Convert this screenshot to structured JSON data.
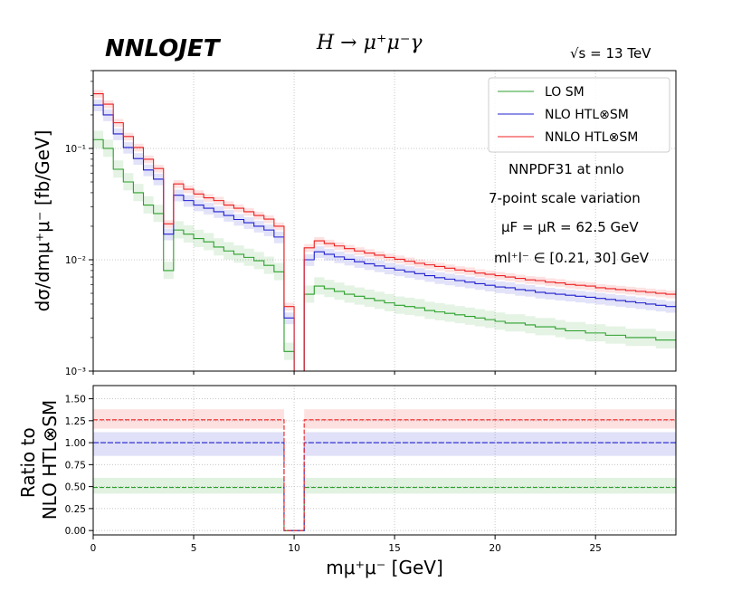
{
  "header": {
    "brand": "NNLOJET",
    "process": "H → μ⁺μ⁻γ",
    "energy": "√s = 13 TeV"
  },
  "annotations": [
    "NNPDF31 at nnlo",
    "7-point scale variation",
    "μF = μR = 62.5 GeV",
    "ml⁺l⁻ ∈ [0.21, 30] GeV"
  ],
  "colors": {
    "lo": "#2ca02c",
    "nlo": "#2020d0",
    "nnlo": "#ee2020",
    "grid": "#c8c8c8"
  },
  "chart_data": [
    {
      "type": "line",
      "scale": "log",
      "ylabel": "dσ/dmμ⁺μ⁻ [fb/GeV]",
      "xlim": [
        0,
        29
      ],
      "ylim": [
        0.001,
        0.5
      ],
      "yticks": [
        {
          "value": 0.1,
          "label": "10⁻¹"
        },
        {
          "value": 0.01,
          "label": "10⁻²"
        },
        {
          "value": 0.001,
          "label": "10⁻³"
        }
      ],
      "grid": true,
      "legend": "top-right",
      "x_edges": [
        0,
        0.5,
        1,
        1.5,
        2,
        2.5,
        3,
        3.5,
        4,
        4.5,
        5,
        5.5,
        6,
        6.5,
        7,
        7.5,
        8,
        8.5,
        9,
        9.5,
        10,
        10.5,
        11,
        11.5,
        12,
        12.5,
        13,
        13.5,
        14,
        14.5,
        15,
        15.5,
        16,
        16.5,
        17,
        17.5,
        18,
        18.5,
        19,
        19.5,
        20,
        20.5,
        21,
        21.5,
        22,
        22.5,
        23,
        23.5,
        24,
        24.5,
        25,
        25.5,
        26,
        26.5,
        27,
        27.5,
        28,
        28.5,
        29
      ],
      "series": [
        {
          "name": "LO SM",
          "color": "#2ca02c",
          "band": [
            0.84,
            1.2
          ],
          "values": [
            0.12,
            0.1,
            0.065,
            0.05,
            0.04,
            0.031,
            0.026,
            0.008,
            0.0185,
            0.017,
            0.0155,
            0.0145,
            0.013,
            0.012,
            0.0112,
            0.0105,
            0.0098,
            0.0089,
            0.0078,
            0.0015,
            null,
            0.0049,
            0.0058,
            0.0055,
            0.0052,
            0.0049,
            0.0047,
            0.0045,
            0.0043,
            0.0041,
            0.0039,
            0.0038,
            0.0037,
            0.0035,
            0.0034,
            0.0033,
            0.0032,
            0.0031,
            0.003,
            0.0029,
            0.0028,
            0.0027,
            0.0027,
            0.0026,
            0.0025,
            0.0025,
            0.0024,
            0.0023,
            0.0023,
            0.0022,
            0.0022,
            0.0021,
            0.0021,
            0.002,
            0.002,
            0.002,
            0.0019,
            0.0019
          ]
        },
        {
          "name": "NLO HTL⊗SM",
          "color": "#2020d0",
          "band": [
            0.88,
            1.12
          ],
          "values": [
            0.245,
            0.2,
            0.135,
            0.102,
            0.081,
            0.064,
            0.053,
            0.017,
            0.038,
            0.034,
            0.031,
            0.029,
            0.027,
            0.025,
            0.023,
            0.0215,
            0.02,
            0.0185,
            0.016,
            0.003,
            null,
            0.01,
            0.0118,
            0.0112,
            0.0106,
            0.0101,
            0.0096,
            0.0092,
            0.0088,
            0.0084,
            0.0081,
            0.0078,
            0.0075,
            0.0072,
            0.0069,
            0.0067,
            0.0065,
            0.0063,
            0.0061,
            0.0059,
            0.0057,
            0.0056,
            0.0054,
            0.0053,
            0.0051,
            0.005,
            0.0049,
            0.0048,
            0.0047,
            0.0046,
            0.0045,
            0.0044,
            0.0043,
            0.0042,
            0.0041,
            0.004,
            0.0039,
            0.0038
          ]
        },
        {
          "name": "NNLO HTL⊗SM",
          "color": "#ee2020",
          "band": [
            0.92,
            1.08
          ],
          "values": [
            0.31,
            0.25,
            0.17,
            0.128,
            0.102,
            0.08,
            0.066,
            0.021,
            0.048,
            0.043,
            0.039,
            0.036,
            0.034,
            0.031,
            0.029,
            0.027,
            0.025,
            0.0232,
            0.02,
            0.0038,
            null,
            0.0128,
            0.0148,
            0.014,
            0.0133,
            0.0126,
            0.012,
            0.0115,
            0.011,
            0.0105,
            0.0101,
            0.0097,
            0.0093,
            0.009,
            0.0087,
            0.0084,
            0.0081,
            0.0079,
            0.0076,
            0.0074,
            0.0072,
            0.007,
            0.0068,
            0.0066,
            0.0065,
            0.0063,
            0.0062,
            0.006,
            0.0059,
            0.0058,
            0.0056,
            0.0055,
            0.0054,
            0.0053,
            0.0052,
            0.0051,
            0.005,
            0.0049
          ]
        }
      ]
    },
    {
      "type": "line",
      "ylabel": "Ratio to NLO HTL⊗SM",
      "xlabel": "mμ⁺μ⁻ [GeV]",
      "xlim": [
        0,
        29
      ],
      "ylim": [
        -0.05,
        1.65
      ],
      "xticks": [
        0,
        5,
        10,
        15,
        20,
        25
      ],
      "xticklabels": [
        "0",
        "5",
        "10",
        "15",
        "20",
        "25"
      ],
      "yticks": [
        0,
        0.25,
        0.5,
        0.75,
        1.0,
        1.25,
        1.5
      ],
      "yticklabels": [
        "0.00",
        "0.25",
        "0.50",
        "0.75",
        "1.00",
        "1.25",
        "1.50"
      ],
      "grid": true,
      "gap": [
        9.5,
        10.5
      ],
      "series": [
        {
          "name": "LO SM",
          "color": "#2ca02c",
          "value": 0.49,
          "band": [
            0.42,
            0.6
          ]
        },
        {
          "name": "NLO HTL⊗SM",
          "color": "#2020d0",
          "value": 1.0,
          "band": [
            0.85,
            1.12
          ]
        },
        {
          "name": "NNLO HTL⊗SM",
          "color": "#ee2020",
          "value": 1.26,
          "band": [
            1.16,
            1.38
          ]
        }
      ]
    }
  ]
}
